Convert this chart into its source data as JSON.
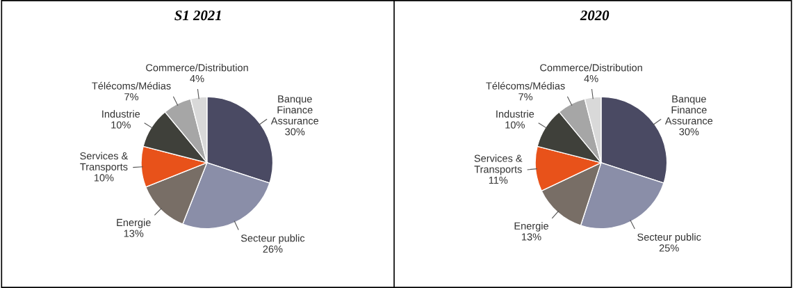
{
  "chart_data": [
    {
      "type": "pie",
      "title": "S1 2021",
      "categories": [
        "Banque\nFinance\nAssurance",
        "Secteur public",
        "Energie",
        "Services &\nTransports",
        "Industrie",
        "Télécoms/Médias",
        "Commerce/Distribution"
      ],
      "values": [
        30,
        26,
        13,
        10,
        10,
        7,
        4
      ],
      "value_labels": [
        "30%",
        "26%",
        "13%",
        "10%",
        "10%",
        "7%",
        "4%"
      ],
      "colors": [
        "#4a4a63",
        "#8a8ea8",
        "#786e66",
        "#e8521a",
        "#3f403a",
        "#a6a6a6",
        "#d9d9d9"
      ]
    },
    {
      "type": "pie",
      "title": "2020",
      "categories": [
        "Banque\nFinance\nAssurance",
        "Secteur public",
        "Energie",
        "Services &\nTransports",
        "Industrie",
        "Télécoms/Médias",
        "Commerce/Distribution"
      ],
      "values": [
        30,
        25,
        13,
        11,
        10,
        7,
        4
      ],
      "value_labels": [
        "30%",
        "25%",
        "13%",
        "11%",
        "10%",
        "7%",
        "4%"
      ],
      "colors": [
        "#4a4a63",
        "#8a8ea8",
        "#786e66",
        "#e8521a",
        "#3f403a",
        "#a6a6a6",
        "#d9d9d9"
      ]
    }
  ]
}
